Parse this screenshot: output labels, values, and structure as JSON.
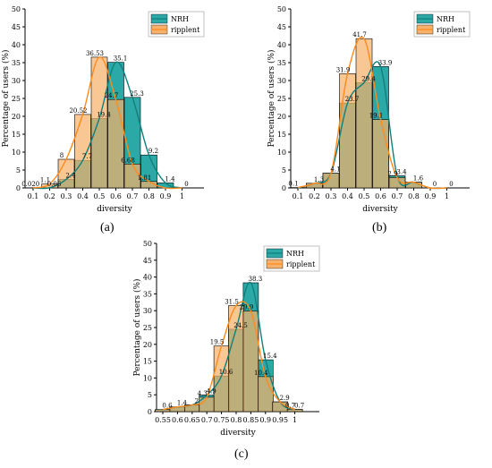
{
  "colors": {
    "nrh": "#2aa9a7",
    "nrh_line": "#117f7c",
    "ripplent": "#f6b26b",
    "ripplent_line": "#ff8a1c",
    "edge": "#000000"
  },
  "chart_data": [
    {
      "type": "bar",
      "panel": "(a)",
      "xlabel": "diversity",
      "ylabel": "Percentage of users (%)",
      "ylim": [
        0,
        50
      ],
      "yticks": [
        0,
        5,
        10,
        15,
        20,
        25,
        30,
        35,
        40,
        45,
        50
      ],
      "categories": [
        "0.1",
        "0.2",
        "0.3",
        "0.4",
        "0.5",
        "0.6",
        "0.7",
        "0.8",
        "0.9",
        "1"
      ],
      "legend_position": "top-right",
      "series": [
        {
          "name": "NRH",
          "values": [
            0,
            0.06,
            2.4,
            7.7,
            19.4,
            35.1,
            25.3,
            9.2,
            1.4,
            0
          ],
          "labels": [
            "0",
            "0.06",
            "2.4",
            "7.7",
            "19.4",
            "35.1",
            "25.3",
            "9.2",
            "1.4",
            "0"
          ]
        },
        {
          "name": "ripplent",
          "values": [
            0.02,
            1.1,
            8,
            20.52,
            36.53,
            24.7,
            6.68,
            1.81,
            0,
            0
          ],
          "labels": [
            "0.02",
            "1.1",
            "8",
            "20.52",
            "36.53",
            "24.7",
            "6.68",
            "1.81",
            "",
            ""
          ]
        }
      ]
    },
    {
      "type": "bar",
      "panel": "(b)",
      "xlabel": "diversity",
      "ylabel": "Percentage of users (%)",
      "ylim": [
        0,
        50
      ],
      "yticks": [
        0,
        5,
        10,
        15,
        20,
        25,
        30,
        35,
        40,
        45,
        50
      ],
      "categories": [
        "0.1",
        "0.2",
        "0.3",
        "0.4",
        "0.5",
        "0.6",
        "0.7",
        "0.8",
        "0.9",
        "1"
      ],
      "legend_position": "top-right",
      "series": [
        {
          "name": "NRH",
          "values": [
            0,
            1.3,
            4.1,
            23.7,
            29.4,
            33.9,
            3.4,
            1.6,
            0,
            0
          ],
          "labels": [
            "",
            "1.3",
            "4.1",
            "23.7",
            "29.4",
            "33.9",
            "3.4",
            "1.6",
            "0",
            "0"
          ]
        },
        {
          "name": "ripplent",
          "values": [
            0.1,
            1.3,
            4.1,
            31.9,
            41.7,
            19.1,
            2.9,
            1.6,
            0,
            0
          ],
          "labels": [
            "0.1",
            "",
            "",
            "31.9",
            "41.7",
            "19.1",
            "2.9",
            "",
            "",
            ""
          ]
        }
      ]
    },
    {
      "type": "bar",
      "panel": "(c)",
      "xlabel": "diversity",
      "ylabel": "Percentage of users (%)",
      "ylim": [
        0,
        50
      ],
      "yticks": [
        0,
        5,
        10,
        15,
        20,
        25,
        30,
        35,
        40,
        45,
        50
      ],
      "categories": [
        "0.55",
        "0.6",
        "0.65",
        "0.7",
        "0.75",
        "0.8",
        "0.85",
        "0.9",
        "0.95",
        "1"
      ],
      "legend_position": "top-right",
      "series": [
        {
          "name": "NRH",
          "values": [
            0.6,
            1.4,
            2,
            4.9,
            10.6,
            24.5,
            38.3,
            15.4,
            2.9,
            0.7
          ],
          "labels": [
            "0.6",
            "1.4",
            "2",
            "4.9",
            "10.6",
            "24.5",
            "38.3",
            "15.4",
            "2.9",
            "0.7"
          ]
        },
        {
          "name": "ripplent",
          "values": [
            0.6,
            1.4,
            2,
            4.3,
            19.5,
            31.5,
            29.9,
            10.4,
            2.9,
            0.7
          ],
          "labels": [
            "",
            "",
            "",
            "4.3",
            "19.5",
            "31.5",
            "29.9",
            "10.4",
            "",
            "0.7"
          ]
        }
      ]
    }
  ]
}
